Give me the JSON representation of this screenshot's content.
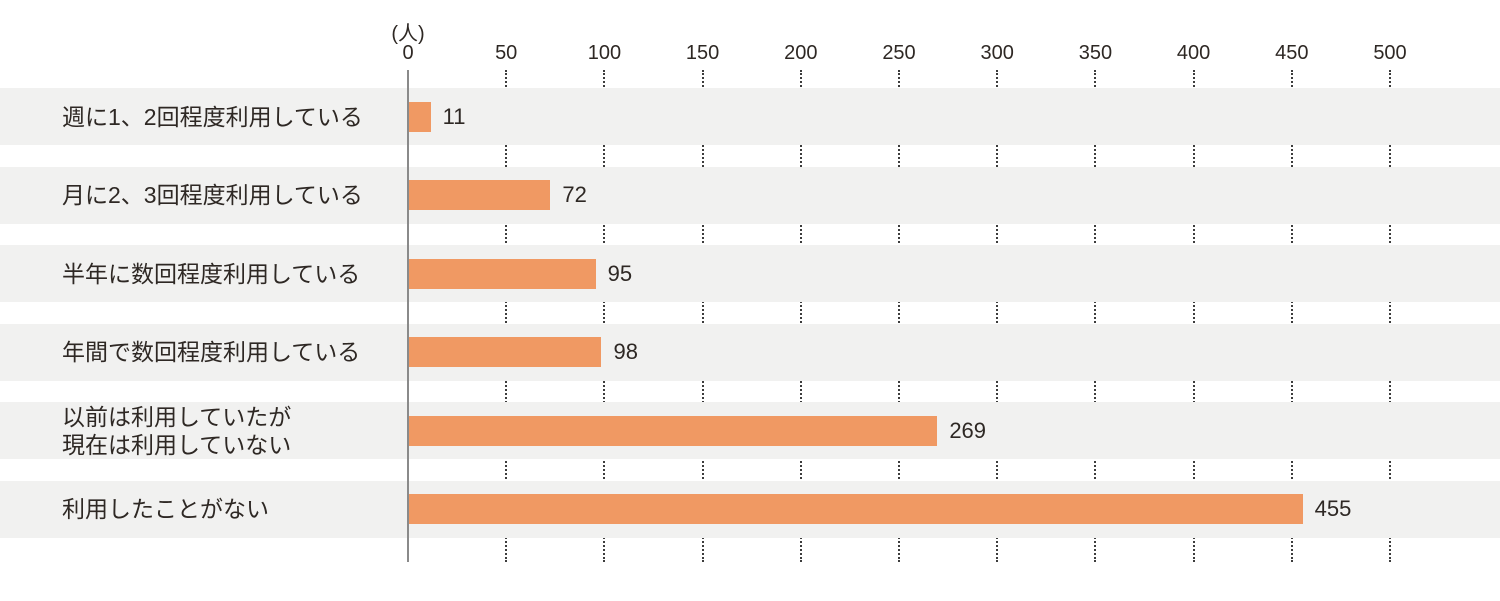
{
  "chart_data": {
    "type": "bar",
    "orientation": "horizontal",
    "title": "",
    "unit_label": "(人)",
    "xlabel": "",
    "ylabel": "",
    "xlim": [
      0,
      500
    ],
    "xticks": [
      0,
      50,
      100,
      150,
      200,
      250,
      300,
      350,
      400,
      450,
      500
    ],
    "grid": "dotted vertical gridlines at each tick, visible only in gaps between row bands",
    "legend": "none",
    "categories": [
      "週に1、2回程度利用している",
      "月に2、3回程度利用している",
      "半年に数回程度利用している",
      "年間で数回程度利用している",
      "以前は利用していたが\n現在は利用していない",
      "利用したことがない"
    ],
    "values": [
      11,
      72,
      95,
      98,
      269,
      455
    ],
    "data_labels_shown": true,
    "colors": {
      "bar": "#f09963",
      "row_band": "#f1f1f0",
      "text": "#2e2824",
      "axis_line": "#8a8a8a",
      "grid_dots": "#3c3c3c",
      "background": "#ffffff"
    }
  }
}
